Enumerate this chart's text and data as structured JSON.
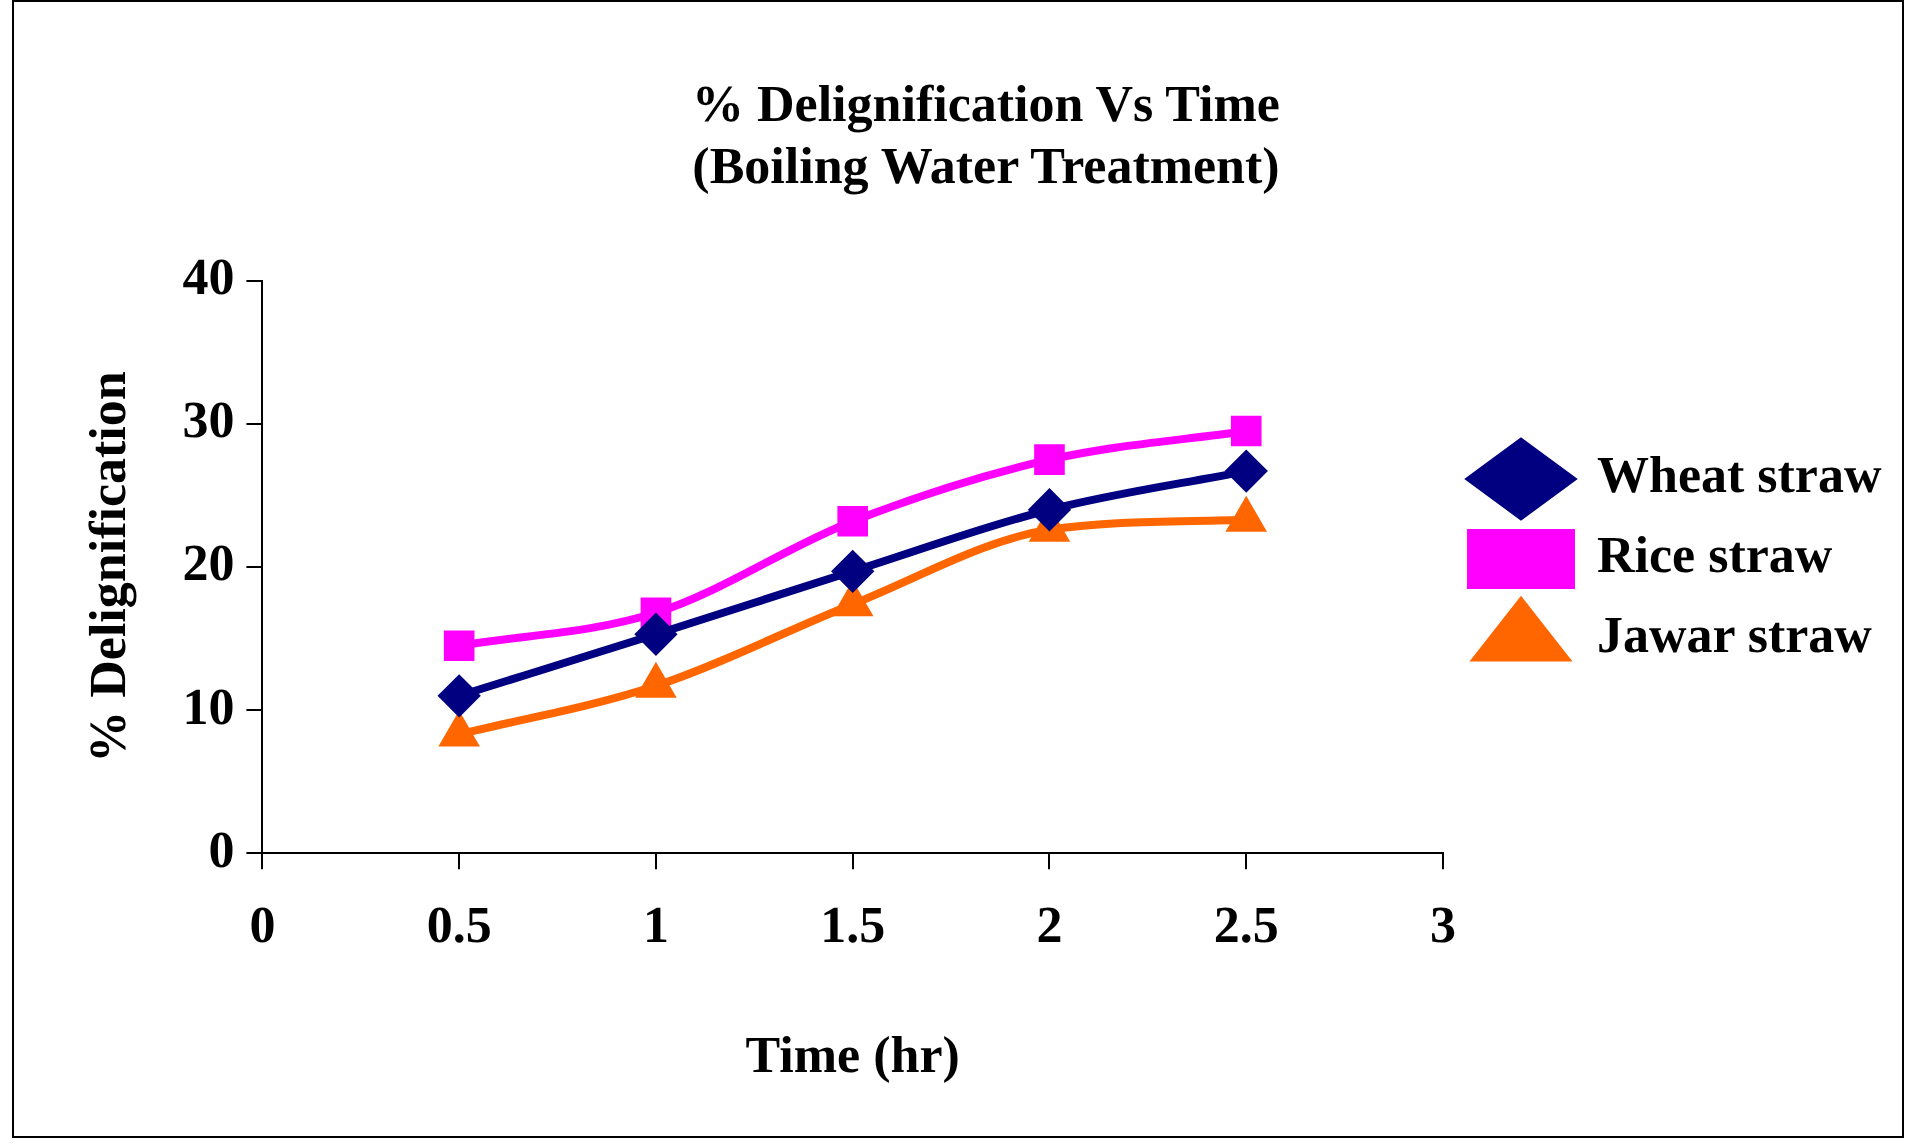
{
  "chart_data": {
    "type": "line",
    "title": [
      "% Delignification Vs Time",
      "(Boiling Water Treatment)"
    ],
    "xlabel": "Time (hr)",
    "ylabel": "% Delignification",
    "x": [
      0.5,
      1,
      1.5,
      2,
      2.5
    ],
    "series": [
      {
        "name": "Wheat straw",
        "color": "#000080",
        "marker": "diamond",
        "values": [
          11.0,
          15.3,
          19.7,
          24.0,
          26.7
        ]
      },
      {
        "name": "Rice straw",
        "color": "#ff00ff",
        "marker": "square",
        "values": [
          14.5,
          16.8,
          23.2,
          27.5,
          29.5
        ]
      },
      {
        "name": "Jawar straw",
        "color": "#ff6600",
        "marker": "triangle",
        "values": [
          8.3,
          11.7,
          17.4,
          22.6,
          23.3
        ]
      }
    ],
    "xlim": [
      0,
      3
    ],
    "xticks": [
      0,
      0.5,
      1,
      1.5,
      2,
      2.5,
      3
    ],
    "ylim": [
      0,
      40
    ],
    "yticks": [
      0,
      10,
      20,
      30,
      40
    ],
    "grid": false,
    "legend": "right"
  }
}
